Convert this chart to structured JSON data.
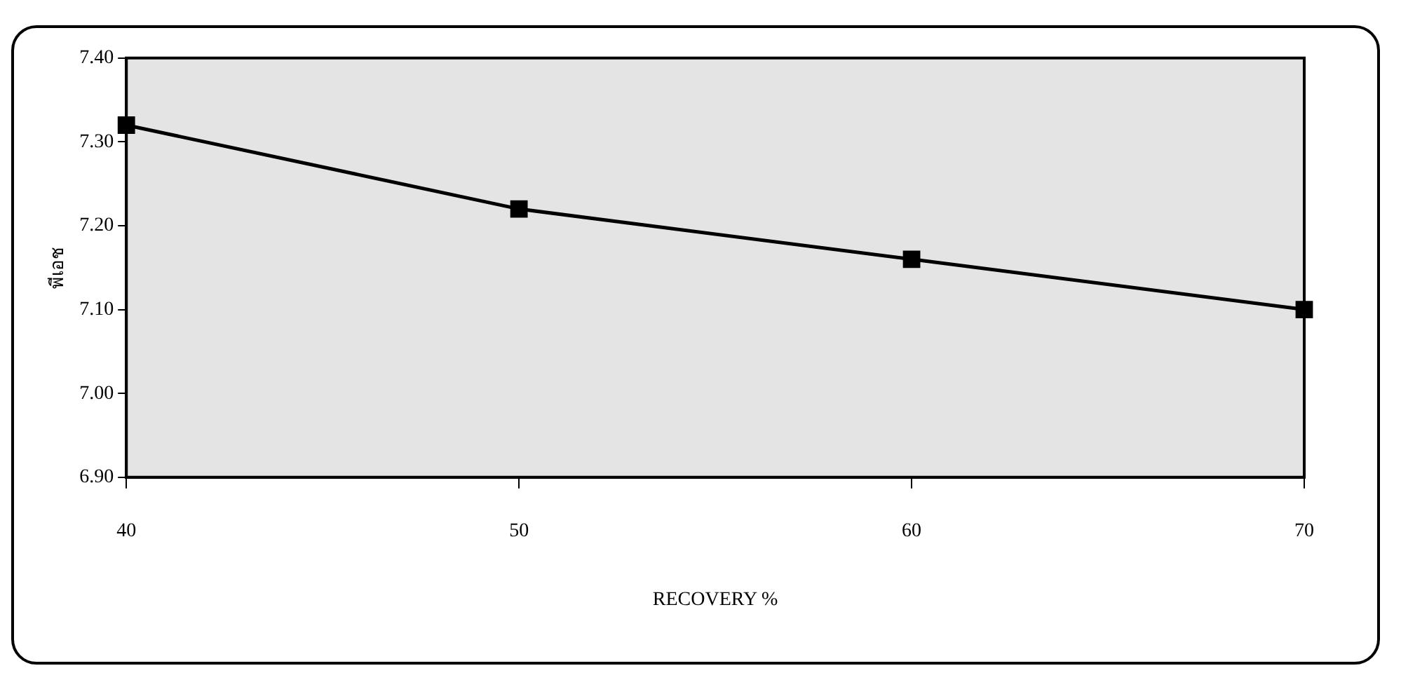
{
  "chart_data": {
    "type": "line",
    "xlabel": "RECOVERY %",
    "ylabel": "พีเอช",
    "x": [
      40,
      50,
      60,
      70
    ],
    "series": [
      {
        "color": "#000000",
        "values": [
          7.32,
          7.22,
          7.16,
          7.1
        ]
      }
    ],
    "xlim": [
      40,
      70
    ],
    "xticks": [
      40,
      50,
      60,
      70
    ],
    "ylim": [
      6.9,
      7.4
    ],
    "yticks": [
      {
        "value": 6.9,
        "label": "6.90"
      },
      {
        "value": 7.0,
        "label": "7.00"
      },
      {
        "value": 7.1,
        "label": "7.10"
      },
      {
        "value": 7.2,
        "label": "7.20"
      },
      {
        "value": 7.3,
        "label": "7.30"
      },
      {
        "value": 7.4,
        "label": "7.40"
      }
    ],
    "grid": false,
    "legend": false,
    "marker": "square",
    "line_style": "solid"
  }
}
